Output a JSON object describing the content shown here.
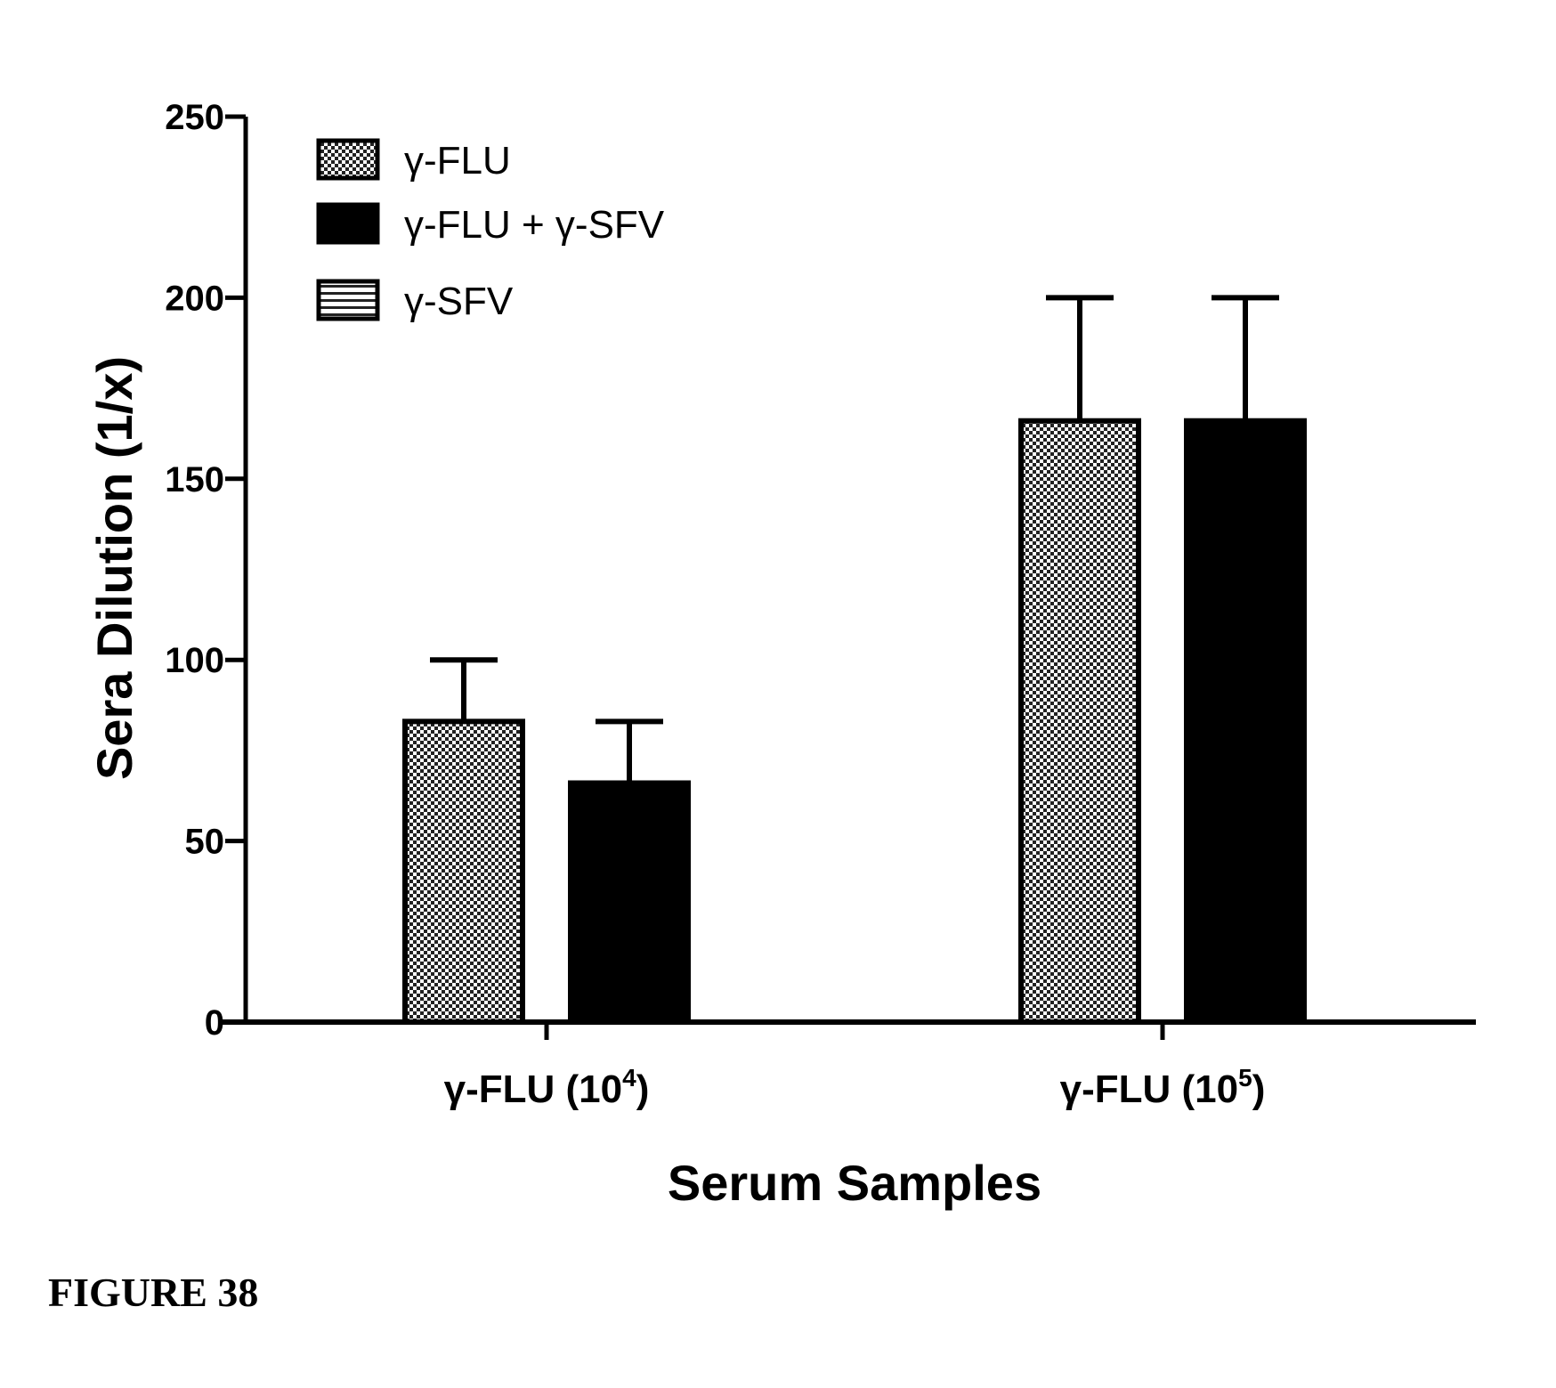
{
  "figure_caption": "FIGURE 38",
  "chart_data": {
    "type": "bar",
    "xlabel": "Serum Samples",
    "ylabel": "Sera Dilution (1/x)",
    "ylim": [
      0,
      250
    ],
    "yticks": [
      0,
      50,
      100,
      150,
      200,
      250
    ],
    "categories": [
      {
        "base": "γ-FLU (10",
        "sup": "4",
        "close": ")"
      },
      {
        "base": "γ-FLU (10",
        "sup": "5",
        "close": ")"
      }
    ],
    "series": [
      {
        "name": "γ-FLU",
        "pattern": "dotted",
        "values": [
          83,
          166
        ],
        "error_upper": [
          100,
          200
        ]
      },
      {
        "name": "γ-FLU + γ-SFV",
        "pattern": "solid",
        "values": [
          66,
          166
        ],
        "error_upper": [
          83,
          200
        ]
      },
      {
        "name": "γ-SFV",
        "pattern": "striped",
        "values": [
          0,
          0
        ],
        "error_upper": [
          null,
          null
        ]
      }
    ],
    "legend_position": "top-left",
    "grid": false
  }
}
